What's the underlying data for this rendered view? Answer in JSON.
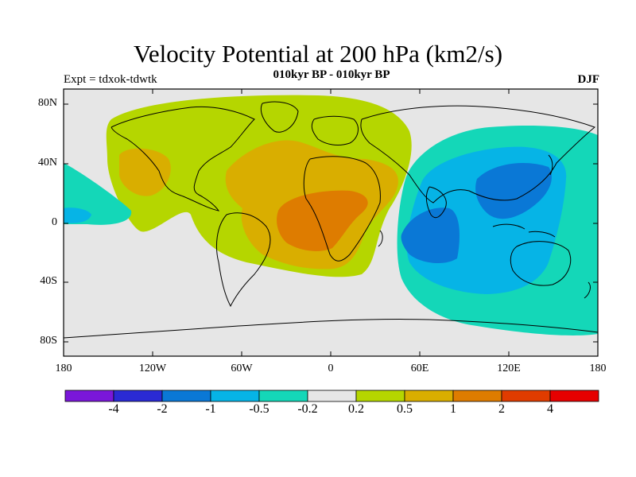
{
  "title": "Velocity Potential at 200 hPa (km2/s)",
  "subtitle": "010kyr BP - 010kyr BP",
  "experiment": "Expt = tdxok-tdwtk",
  "season": "DJF",
  "lat_ticks": [
    "80N",
    "40N",
    "0",
    "40S",
    "80S"
  ],
  "lon_ticks": [
    "180",
    "120W",
    "60W",
    "0",
    "60E",
    "120E",
    "180"
  ],
  "colorbar": {
    "labels": [
      "-4",
      "-2",
      "-1",
      "-0.5",
      "-0.2",
      "0.2",
      "0.5",
      "1",
      "2",
      "4"
    ],
    "colors": [
      "#7a17d9",
      "#2a2ad4",
      "#0a78d6",
      "#06b4e6",
      "#14d7b8",
      "#e6e6e6",
      "#b5d600",
      "#d9ae00",
      "#de7c00",
      "#e03c00",
      "#e60000"
    ]
  }
}
